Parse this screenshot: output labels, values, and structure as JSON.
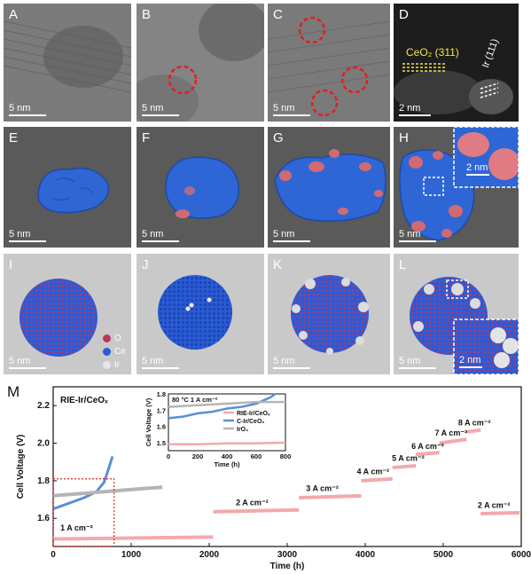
{
  "panels": [
    {
      "letter": "A",
      "scale": "5 nm"
    },
    {
      "letter": "B",
      "scale": "5 nm"
    },
    {
      "letter": "C",
      "scale": "5 nm"
    },
    {
      "letter": "D",
      "scale": "2 nm",
      "label_ceo2": "CeO₂ (311)",
      "label_ir": "Ir (111)"
    },
    {
      "letter": "E",
      "scale": "5 nm"
    },
    {
      "letter": "F",
      "scale": "5 nm"
    },
    {
      "letter": "G",
      "scale": "5 nm"
    },
    {
      "letter": "H",
      "scale": "5 nm",
      "inset_scale": "2 nm"
    },
    {
      "letter": "I",
      "scale": "5 nm"
    },
    {
      "letter": "J",
      "scale": "5 nm"
    },
    {
      "letter": "K",
      "scale": "5 nm"
    },
    {
      "letter": "L",
      "scale": "5 nm",
      "inset_scale": "2 nm"
    }
  ],
  "legend_atoms": [
    {
      "label": "O",
      "color": "#c2335a"
    },
    {
      "label": "Ce",
      "color": "#2a5bd7"
    },
    {
      "label": "Ir",
      "color": "#e6e6e6"
    }
  ],
  "panel_m": {
    "letter": "M",
    "title": "RIE-Ir/CeOₓ",
    "current_annotations": [
      "1 A cm⁻²",
      "2 A cm⁻²",
      "3 A cm⁻²",
      "4 A cm⁻²",
      "5 A cm⁻²",
      "6 A cm⁻²",
      "7 A cm⁻²",
      "8 A cm⁻²",
      "2 A cm⁻²"
    ],
    "inset_condition": "80 °C  1 A cm⁻²",
    "inset_legend": [
      "RIE-Ir/CeOₓ",
      "C-Ir/CeO₂",
      "IrO₂"
    ]
  },
  "chart_data": [
    {
      "type": "line",
      "xlabel": "Time (h)",
      "ylabel": "Cell Voltage (V)",
      "xlim": [
        0,
        6000
      ],
      "ylim": [
        1.45,
        2.3
      ],
      "xticks": [
        0,
        1000,
        2000,
        3000,
        4000,
        5000,
        6000
      ],
      "yticks": [
        1.6,
        1.8,
        2.0,
        2.2
      ],
      "series": [
        {
          "name": "RIE-Ir/CeOₓ",
          "color": "#f3a9ad",
          "segments": [
            {
              "current": "1 A cm⁻²",
              "x": [
                0,
                2050
              ],
              "y": [
                1.49,
                1.5
              ]
            },
            {
              "current": "2 A cm⁻²",
              "x": [
                2050,
                3150
              ],
              "y": [
                1.635,
                1.645
              ]
            },
            {
              "current": "3 A cm⁻²",
              "x": [
                3150,
                3950
              ],
              "y": [
                1.71,
                1.72
              ]
            },
            {
              "current": "4 A cm⁻²",
              "x": [
                3950,
                4350
              ],
              "y": [
                1.8,
                1.81
              ]
            },
            {
              "current": "5 A cm⁻²",
              "x": [
                4350,
                4650
              ],
              "y": [
                1.87,
                1.88
              ]
            },
            {
              "current": "6 A cm⁻²",
              "x": [
                4650,
                4950
              ],
              "y": [
                1.94,
                1.95
              ]
            },
            {
              "current": "7 A cm⁻²",
              "x": [
                4950,
                5300
              ],
              "y": [
                2.0,
                2.02
              ]
            },
            {
              "current": "8 A cm⁻²",
              "x": [
                5300,
                5480
              ],
              "y": [
                2.06,
                2.07
              ]
            },
            {
              "current": "2 A cm⁻²",
              "x": [
                5480,
                5980
              ],
              "y": [
                1.625,
                1.63
              ]
            }
          ]
        },
        {
          "name": "C-Ir/CeO₂",
          "color": "#5b8fd6",
          "x": [
            0,
            200,
            400,
            550,
            650,
            700,
            760
          ],
          "y": [
            1.65,
            1.68,
            1.71,
            1.74,
            1.79,
            1.85,
            1.93
          ]
        },
        {
          "name": "IrO₂",
          "color": "#b5b5b5",
          "x": [
            0,
            300,
            600,
            900,
            1200,
            1400
          ],
          "y": [
            1.72,
            1.73,
            1.74,
            1.75,
            1.76,
            1.765
          ]
        }
      ]
    },
    {
      "type": "line",
      "xlabel": "Time (h)",
      "ylabel": "Cell Voltage (V)",
      "xlim": [
        0,
        800
      ],
      "ylim": [
        1.45,
        1.8
      ],
      "xticks": [
        0,
        200,
        400,
        600,
        800
      ],
      "yticks": [
        1.5,
        1.6,
        1.7,
        1.8
      ],
      "series": [
        {
          "name": "RIE-Ir/CeOₓ",
          "color": "#f3a9ad",
          "x": [
            0,
            200,
            400,
            600,
            800
          ],
          "y": [
            1.49,
            1.49,
            1.495,
            1.495,
            1.5
          ]
        },
        {
          "name": "C-Ir/CeO₂",
          "color": "#5b8fd6",
          "x": [
            0,
            100,
            200,
            300,
            400,
            500,
            600,
            650,
            700,
            730
          ],
          "y": [
            1.65,
            1.66,
            1.68,
            1.69,
            1.71,
            1.72,
            1.74,
            1.76,
            1.78,
            1.8
          ]
        },
        {
          "name": "IrO₂",
          "color": "#b5b5b5",
          "x": [
            0,
            200,
            400,
            600,
            800
          ],
          "y": [
            1.72,
            1.73,
            1.74,
            1.75,
            1.75
          ]
        }
      ]
    }
  ]
}
